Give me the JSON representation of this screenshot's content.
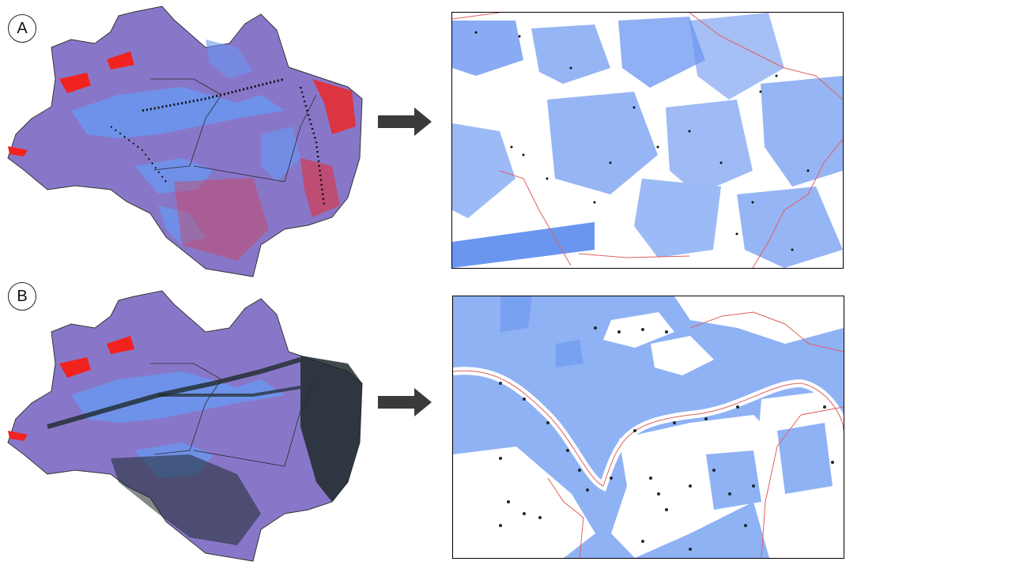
{
  "panels": [
    {
      "label": "A"
    },
    {
      "label": "B"
    }
  ],
  "colors": {
    "land_purple": "#8877c9",
    "water_blue": "#6a96f0",
    "light_blue": "#9cbaf5",
    "highlight_red": "#f2231f",
    "points_black": "#101010",
    "boundary": "#2a2a2a",
    "arrow": "#3a3a3a",
    "zoom_line_red": "#e06060"
  },
  "icons": [
    "right-arrow-icon"
  ]
}
